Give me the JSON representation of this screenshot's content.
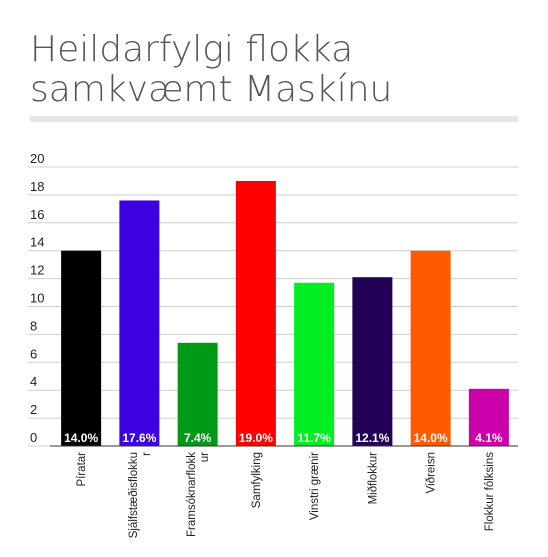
{
  "title_lines": [
    "Heildarfylgi flokka",
    "samkvæmt Maskínu"
  ],
  "chart_data": {
    "type": "bar",
    "title": "Heildarfylgi flokka samkvæmt Maskínu",
    "xlabel": "",
    "ylabel": "",
    "ylim": [
      0,
      20
    ],
    "yticks": [
      0,
      2,
      4,
      6,
      8,
      10,
      12,
      14,
      16,
      18,
      20
    ],
    "grid": true,
    "categories": [
      [
        "Píratar"
      ],
      [
        "Sjálfstæðisflokku",
        "r"
      ],
      [
        "Framsóknarflokk",
        "ur"
      ],
      [
        "Samfylking"
      ],
      [
        "Vinstri grænir"
      ],
      [
        "Miðflokkur"
      ],
      [
        "Viðreisn"
      ],
      [
        "Flokkur fólksins"
      ]
    ],
    "values": [
      14.0,
      17.6,
      7.4,
      19.0,
      11.7,
      12.1,
      14.0,
      4.1
    ],
    "data_labels": [
      "14.0%",
      "17.6%",
      "7.4%",
      "19.0%",
      "11.7%",
      "12.1%",
      "14.0%",
      "4.1%"
    ],
    "colors": [
      "#000000",
      "#3d00e0",
      "#009a17",
      "#ff0000",
      "#00ee22",
      "#220055",
      "#ff5a00",
      "#cc00aa"
    ]
  }
}
